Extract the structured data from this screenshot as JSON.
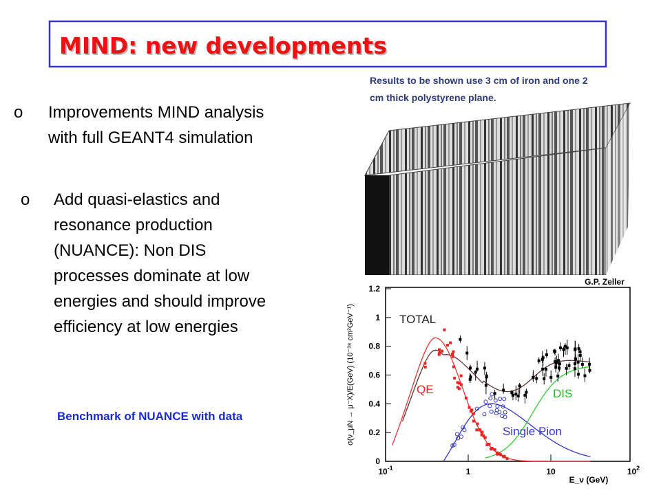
{
  "header": {
    "title": "MIND: new developments"
  },
  "bullets": [
    {
      "marker": "o",
      "lines": [
        "Improvements MIND analysis",
        "with full GEANT4 simulation"
      ]
    },
    {
      "marker": "o",
      "lines": [
        "Add quasi-elastics and",
        "resonance production",
        "(NUANCE): Non DIS",
        "processes dominate at low",
        "energies and should improve",
        "efficiency at low energies"
      ]
    }
  ],
  "caption": "Benchmark of NUANCE with data",
  "detector": {
    "note": [
      "Results to be shown use 3 cm of iron and one 2",
      "cm thick polystyrene plane."
    ]
  },
  "plot": {
    "author": "G.P. Zeller",
    "y_label": "σ(ν_μN → μ⁻X)/E(GeV)  (10⁻³⁸ cm²GeV⁻¹)",
    "x_label": "E_ν (GeV)",
    "y_ticks": [
      "1.2",
      "1",
      "0.8",
      "0.6",
      "0.4",
      "0.2",
      "0"
    ],
    "x_ticks": [
      {
        "base": "10",
        "exp": "-1"
      },
      {
        "base": "1"
      },
      {
        "base": "10"
      },
      {
        "base": "10",
        "exp": "2"
      }
    ],
    "curve_labels": [
      "TOTAL",
      "QE",
      "DIS",
      "Single Pion"
    ]
  }
}
